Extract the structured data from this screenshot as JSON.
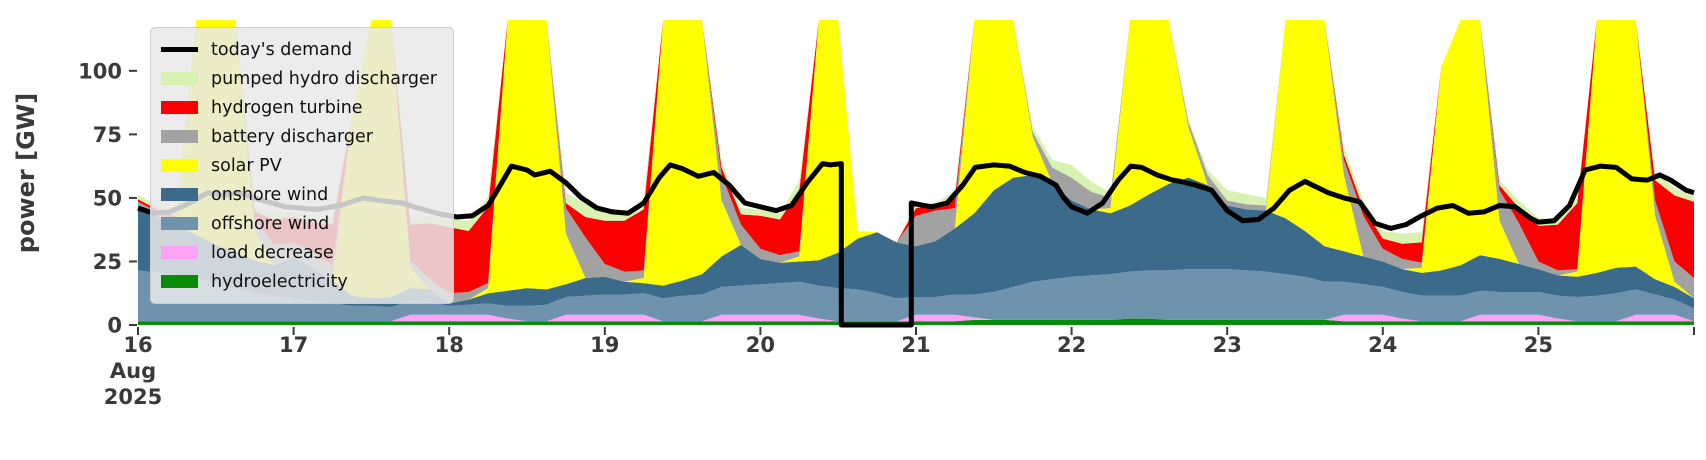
{
  "chart_data": {
    "type": "area",
    "stacked": true,
    "title": "",
    "ylabel": "power [GW]",
    "ylim": [
      0,
      120
    ],
    "xlim": [
      16,
      26
    ],
    "grid": false,
    "legend_position": "upper left",
    "x_start": 16,
    "x_step": 0.125,
    "x_axis_note": "days of Aug 2025",
    "yticks": [
      0,
      25,
      50,
      75,
      100
    ],
    "xticks": [
      {
        "v": 16,
        "label": "16",
        "sub": [
          "Aug",
          "2025"
        ]
      },
      {
        "v": 17,
        "label": "17"
      },
      {
        "v": 18,
        "label": "18"
      },
      {
        "v": 19,
        "label": "19"
      },
      {
        "v": 20,
        "label": "20"
      },
      {
        "v": 21,
        "label": "21"
      },
      {
        "v": 22,
        "label": "22"
      },
      {
        "v": 23,
        "label": "23"
      },
      {
        "v": 24,
        "label": "24"
      },
      {
        "v": 25,
        "label": "25"
      },
      {
        "v": 26,
        "label": ""
      }
    ],
    "series": [
      {
        "name": "hydroelectricity",
        "color": "#088c08",
        "values": [
          1.5,
          1.5,
          1.5,
          1.5,
          1.5,
          1.5,
          1.5,
          1.5,
          1.5,
          1.5,
          1.5,
          1.5,
          1.5,
          1.5,
          1.5,
          1.5,
          1.5,
          1.5,
          1.5,
          1.5,
          1.5,
          1.5,
          1.5,
          1.5,
          1.5,
          1.5,
          1.5,
          1.5,
          1.5,
          1.5,
          1.5,
          1.5,
          1.5,
          1.5,
          1.5,
          1.5,
          1.5,
          1.5,
          1.5,
          1.5,
          1.5,
          1.5,
          1.5,
          2,
          2,
          2,
          2,
          2,
          2,
          2,
          2,
          2.5,
          2.5,
          2,
          2,
          2,
          2,
          2,
          2,
          2,
          2,
          2,
          1.5,
          1.5,
          1.5,
          1.5,
          1.5,
          1.5,
          1.5,
          1.5,
          1.5,
          1.5,
          1.5,
          1.5,
          1.5,
          1.5,
          1.5,
          1.5,
          1.5,
          1.5,
          1.5
        ]
      },
      {
        "name": "load decrease",
        "color": "#fba3f5",
        "values": [
          0,
          0,
          0,
          0,
          0,
          0,
          0,
          0,
          0,
          0,
          0,
          0,
          0,
          0,
          2.5,
          2.5,
          2.5,
          2.5,
          2.5,
          1,
          0,
          0,
          2.5,
          2.5,
          2.5,
          2.5,
          2.5,
          0,
          0,
          0,
          2.5,
          2.5,
          2.5,
          2.5,
          2.5,
          1,
          0,
          0,
          0,
          0,
          2.5,
          2.5,
          2.5,
          1,
          0,
          0,
          0,
          0,
          0,
          0,
          0,
          0,
          0,
          0,
          0,
          0,
          0,
          0,
          0,
          0,
          0,
          0,
          2.5,
          2.5,
          2.5,
          1,
          0,
          0,
          0,
          2.5,
          2.5,
          2.5,
          2.5,
          1,
          0,
          0,
          0,
          2.5,
          2.5,
          2.5,
          0
        ]
      },
      {
        "name": "offshore wind",
        "color": "#7093ad",
        "values": [
          20,
          19,
          18,
          17,
          15,
          13,
          11,
          10,
          9,
          8,
          7,
          6,
          6,
          5.5,
          5.5,
          5,
          3.5,
          4,
          4.5,
          5,
          6,
          6.5,
          7,
          7.5,
          8,
          8,
          8.5,
          9,
          10,
          10.5,
          11,
          11.5,
          12,
          12.5,
          13,
          13,
          13,
          12.5,
          11,
          9,
          7,
          7,
          8,
          9,
          11,
          13,
          15,
          16,
          17,
          17.5,
          18,
          18.5,
          19,
          19.5,
          20,
          20,
          20,
          19.5,
          19,
          18,
          17,
          15,
          13,
          12,
          11,
          10.5,
          10,
          10,
          10,
          9.5,
          9,
          9,
          9,
          9,
          9.5,
          10,
          11,
          10,
          8,
          6,
          5
        ]
      },
      {
        "name": "onshore wind",
        "color": "#3c6a8b",
        "values": [
          25,
          22,
          20,
          17,
          15,
          14,
          13,
          12,
          16,
          13,
          9,
          4,
          3,
          4,
          5,
          5,
          1,
          2,
          4,
          6,
          7,
          6,
          5,
          7,
          7,
          5,
          4,
          5,
          6,
          8,
          12,
          16,
          10,
          8,
          8,
          10,
          14,
          20,
          24,
          22,
          20,
          22,
          26,
          32,
          40,
          43,
          42,
          38,
          30,
          26,
          24,
          26,
          30,
          34,
          36,
          33,
          25,
          24,
          24,
          22,
          18,
          14,
          12,
          11,
          10,
          9,
          9,
          10,
          12,
          14,
          13,
          11,
          9,
          8,
          8,
          9,
          10,
          9,
          6,
          5,
          4
        ]
      },
      {
        "name": "solar PV",
        "color": "#ffff00",
        "values": [
          0,
          0,
          0,
          90,
          119,
          119,
          12,
          0,
          0,
          0,
          0,
          70,
          118,
          118,
          8,
          0,
          0,
          0,
          2,
          119,
          119,
          119,
          20,
          0,
          0,
          0,
          2,
          119,
          119,
          119,
          22,
          0,
          0,
          0,
          2,
          115,
          119,
          3,
          0,
          0,
          0,
          0,
          0,
          100,
          119,
          119,
          15,
          0,
          0,
          0,
          2,
          119,
          119,
          119,
          20,
          0,
          0,
          0,
          0,
          100,
          119,
          119,
          30,
          0,
          0,
          0,
          2,
          80,
          119,
          110,
          15,
          0,
          0,
          0,
          2,
          110,
          119,
          115,
          25,
          2,
          0
        ]
      },
      {
        "name": "battery discharger",
        "color": "#a2a2a2",
        "values": [
          2,
          2,
          2,
          0,
          0,
          0,
          4,
          8,
          6,
          6,
          6,
          0,
          0,
          0,
          3,
          4,
          4,
          3,
          2,
          0,
          0,
          0,
          10,
          16,
          5,
          4,
          3,
          0,
          0,
          0,
          10,
          8,
          4,
          3,
          2,
          0,
          0,
          0,
          0,
          0,
          12,
          12,
          8,
          2,
          0,
          0,
          2,
          6,
          9,
          7,
          4,
          0,
          0,
          0,
          2,
          4,
          2,
          2,
          2,
          0,
          0,
          0,
          6,
          16,
          5,
          4,
          2,
          0,
          0,
          0,
          12,
          16,
          3,
          2,
          1,
          0,
          0,
          0,
          6,
          8,
          8
        ]
      },
      {
        "name": "hydrogen turbine",
        "color": "#fb0000",
        "values": [
          1,
          1,
          1,
          0,
          0,
          0,
          3,
          10,
          10,
          12,
          16,
          0,
          0,
          0,
          14,
          22,
          26,
          24,
          30,
          2,
          0,
          0,
          2,
          8,
          17,
          20,
          24,
          6,
          0,
          0,
          3,
          4,
          13,
          14,
          24,
          2,
          0,
          0,
          0,
          0,
          3,
          2,
          4,
          0,
          0,
          0,
          0,
          0,
          0,
          0,
          0,
          0,
          0,
          0,
          0,
          0,
          0,
          0,
          0,
          0,
          0,
          0,
          2,
          3,
          4,
          6,
          8,
          0,
          0,
          0,
          2,
          6,
          14,
          18,
          26,
          4,
          0,
          0,
          8,
          26,
          30
        ]
      },
      {
        "name": "pumped hydro discharger",
        "color": "#d8f2b2",
        "values": [
          2,
          1,
          2,
          0,
          0,
          0,
          2,
          3,
          2,
          2,
          3,
          0,
          0,
          0,
          2,
          3,
          3,
          4,
          4,
          1,
          0,
          0,
          4,
          5,
          3,
          2.5,
          4,
          2,
          0,
          0,
          2.5,
          2.5,
          2.5,
          2.5,
          4,
          1,
          0,
          0,
          0,
          0,
          2,
          1,
          3,
          1,
          0,
          0,
          2,
          3,
          5,
          4,
          2,
          0,
          0,
          0,
          1,
          2,
          4,
          4,
          3,
          0,
          0,
          0,
          3,
          3,
          3,
          4,
          4,
          0,
          0,
          0,
          2,
          3,
          3,
          2,
          2,
          0,
          0,
          0,
          3,
          3,
          2
        ]
      }
    ],
    "demand_line": {
      "name": "today's demand",
      "color": "#000000",
      "width": 5,
      "points": [
        [
          16.0,
          46
        ],
        [
          16.1,
          44
        ],
        [
          16.2,
          44.5
        ],
        [
          16.3,
          47
        ],
        [
          16.45,
          52
        ],
        [
          16.55,
          51
        ],
        [
          16.65,
          52
        ],
        [
          16.8,
          49
        ],
        [
          16.95,
          46.5
        ],
        [
          17.05,
          46
        ],
        [
          17.15,
          45.5
        ],
        [
          17.3,
          47
        ],
        [
          17.45,
          50
        ],
        [
          17.55,
          49
        ],
        [
          17.7,
          48
        ],
        [
          17.8,
          46
        ],
        [
          17.95,
          43.5
        ],
        [
          18.05,
          42.5
        ],
        [
          18.15,
          43
        ],
        [
          18.25,
          47
        ],
        [
          18.3,
          52
        ],
        [
          18.4,
          62.5
        ],
        [
          18.5,
          61
        ],
        [
          18.55,
          59
        ],
        [
          18.65,
          60.5
        ],
        [
          18.75,
          56
        ],
        [
          18.85,
          50
        ],
        [
          18.95,
          46
        ],
        [
          19.05,
          44.5
        ],
        [
          19.15,
          44
        ],
        [
          19.25,
          48
        ],
        [
          19.35,
          58
        ],
        [
          19.42,
          63
        ],
        [
          19.5,
          61.5
        ],
        [
          19.6,
          58.5
        ],
        [
          19.7,
          60
        ],
        [
          19.8,
          55
        ],
        [
          19.9,
          48
        ],
        [
          20.0,
          46.5
        ],
        [
          20.1,
          45
        ],
        [
          20.2,
          47
        ],
        [
          20.3,
          56
        ],
        [
          20.4,
          63.5
        ],
        [
          20.45,
          63
        ],
        [
          20.52,
          63.5
        ],
        [
          20.52,
          0
        ],
        [
          20.97,
          0
        ],
        [
          20.97,
          48
        ],
        [
          21.05,
          47
        ],
        [
          21.1,
          46.5
        ],
        [
          21.2,
          48
        ],
        [
          21.3,
          55
        ],
        [
          21.38,
          62
        ],
        [
          21.5,
          63
        ],
        [
          21.6,
          62.5
        ],
        [
          21.7,
          60
        ],
        [
          21.8,
          58.5
        ],
        [
          21.9,
          55
        ],
        [
          21.95,
          50
        ],
        [
          22.0,
          46.5
        ],
        [
          22.1,
          44
        ],
        [
          22.2,
          48
        ],
        [
          22.3,
          57
        ],
        [
          22.38,
          62.5
        ],
        [
          22.45,
          62
        ],
        [
          22.55,
          59
        ],
        [
          22.65,
          57
        ],
        [
          22.7,
          56.5
        ],
        [
          22.8,
          55
        ],
        [
          22.9,
          53
        ],
        [
          23.0,
          45
        ],
        [
          23.1,
          41
        ],
        [
          23.2,
          41.5
        ],
        [
          23.3,
          46
        ],
        [
          23.4,
          53
        ],
        [
          23.5,
          56.5
        ],
        [
          23.55,
          55
        ],
        [
          23.65,
          52
        ],
        [
          23.75,
          50
        ],
        [
          23.85,
          48.5
        ],
        [
          23.95,
          40
        ],
        [
          24.05,
          38
        ],
        [
          24.15,
          39.5
        ],
        [
          24.25,
          43
        ],
        [
          24.35,
          46
        ],
        [
          24.45,
          47
        ],
        [
          24.55,
          44
        ],
        [
          24.65,
          44.5
        ],
        [
          24.75,
          47
        ],
        [
          24.85,
          46.5
        ],
        [
          24.95,
          42
        ],
        [
          25.0,
          40.5
        ],
        [
          25.1,
          41
        ],
        [
          25.2,
          47
        ],
        [
          25.3,
          61
        ],
        [
          25.4,
          62.5
        ],
        [
          25.5,
          62
        ],
        [
          25.6,
          57.5
        ],
        [
          25.7,
          57
        ],
        [
          25.78,
          59
        ],
        [
          25.85,
          57
        ],
        [
          25.95,
          53
        ],
        [
          26.0,
          52
        ]
      ]
    },
    "legend": [
      {
        "label": "today's demand",
        "color": "#000000",
        "type": "line"
      },
      {
        "label": "pumped hydro discharger",
        "color": "#d8f2b2",
        "type": "patch"
      },
      {
        "label": "hydrogen turbine",
        "color": "#fb0000",
        "type": "patch"
      },
      {
        "label": "battery discharger",
        "color": "#a2a2a2",
        "type": "patch"
      },
      {
        "label": "solar PV",
        "color": "#ffff00",
        "type": "patch"
      },
      {
        "label": "onshore wind",
        "color": "#3c6a8b",
        "type": "patch"
      },
      {
        "label": "offshore wind",
        "color": "#7093ad",
        "type": "patch"
      },
      {
        "label": "load decrease",
        "color": "#fba3f5",
        "type": "patch"
      },
      {
        "label": "hydroelectricity",
        "color": "#088c08",
        "type": "patch"
      }
    ]
  }
}
